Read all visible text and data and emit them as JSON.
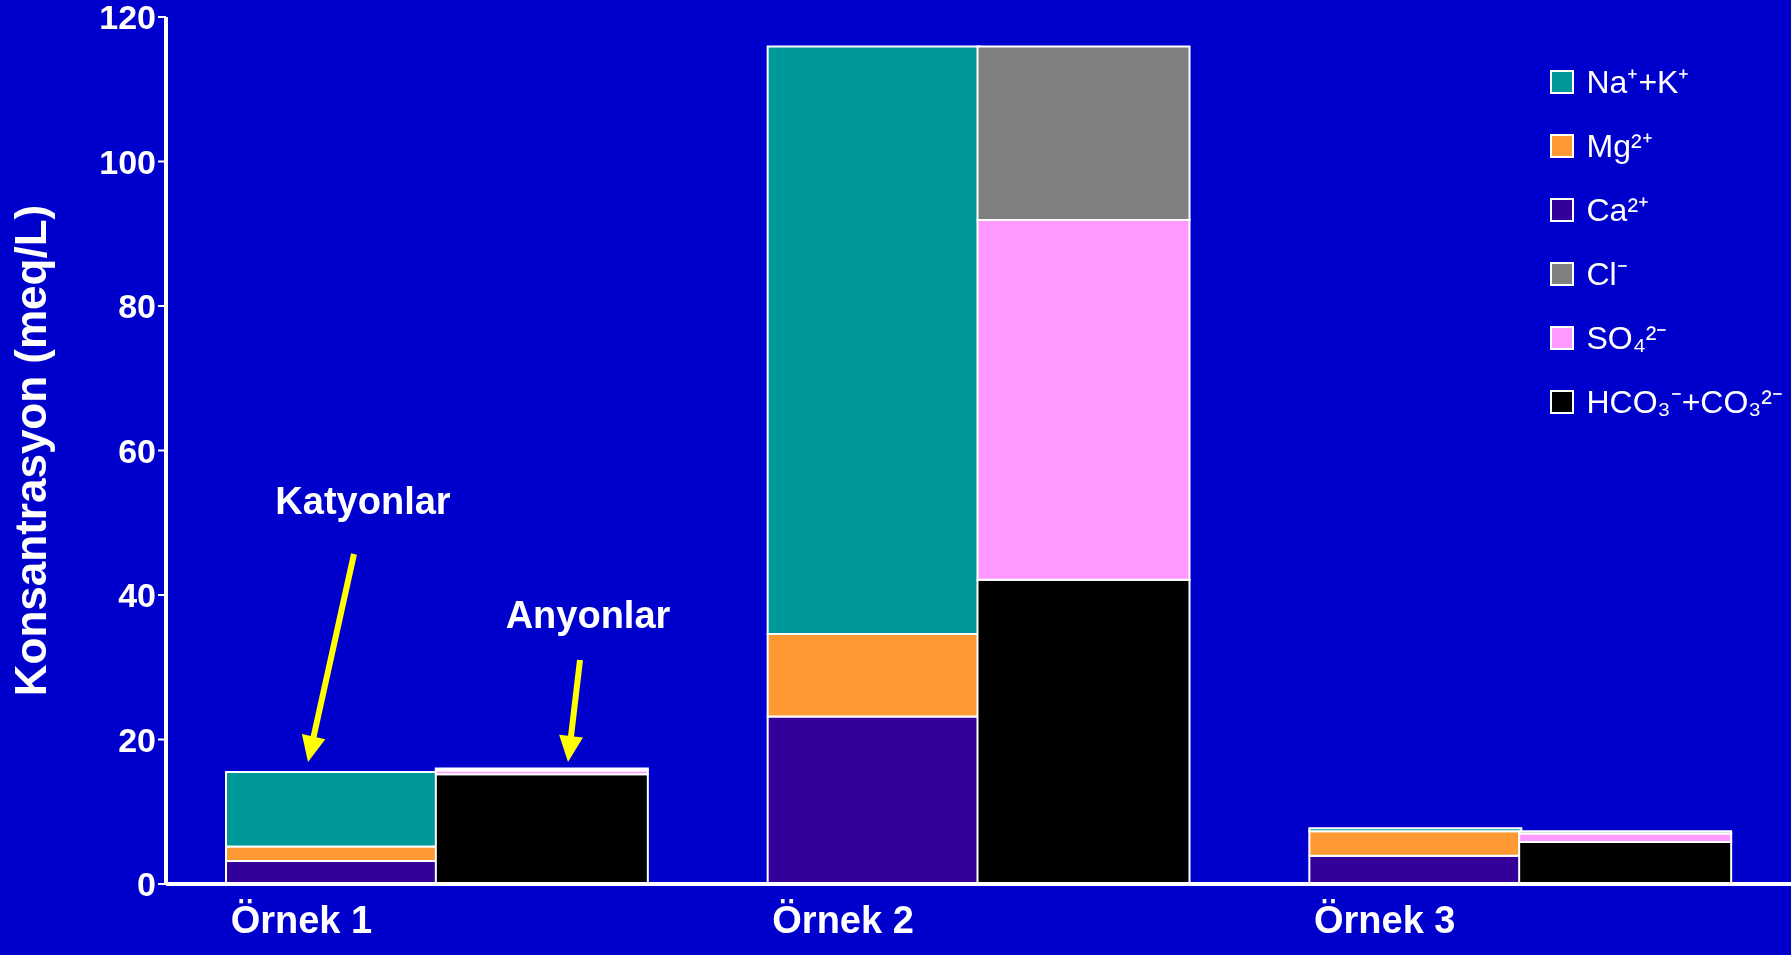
{
  "chart_data": {
    "type": "bar",
    "stacked": true,
    "ylabel": "Konsantrasyon (meq/L)",
    "categories": [
      "Örnek 1",
      null,
      "Örnek 2",
      null,
      "Örnek 3",
      null
    ],
    "series": [
      {
        "name": "Ca²⁺",
        "color": "#330099",
        "values": [
          3.2,
          null,
          23.2,
          null,
          3.9,
          null
        ]
      },
      {
        "name": "Mg²⁺",
        "color": "#ff9933",
        "values": [
          2.0,
          null,
          11.4,
          null,
          3.4,
          null
        ]
      },
      {
        "name": "Na⁺+K⁺",
        "color": "#009999",
        "values": [
          10.3,
          null,
          81.3,
          null,
          0.4,
          null
        ]
      },
      {
        "name": "HCO₃⁻+CO₃²⁻",
        "color": "#000000",
        "values": [
          null,
          15.2,
          null,
          42.1,
          null,
          5.8
        ]
      },
      {
        "name": "SO₄²⁻",
        "color": "#ff99ff",
        "values": [
          null,
          0.5,
          null,
          49.8,
          null,
          1.2
        ]
      },
      {
        "name": "Cl⁻",
        "color": "#808080",
        "values": [
          null,
          0.3,
          null,
          24.0,
          null,
          0.3
        ]
      }
    ],
    "ylim": [
      0,
      120
    ],
    "yticks": [
      0,
      20,
      40,
      60,
      80,
      100,
      120
    ],
    "legend": "top right",
    "grid": false,
    "annotations": [
      "Katyonlar",
      "Anyonlar"
    ]
  }
}
